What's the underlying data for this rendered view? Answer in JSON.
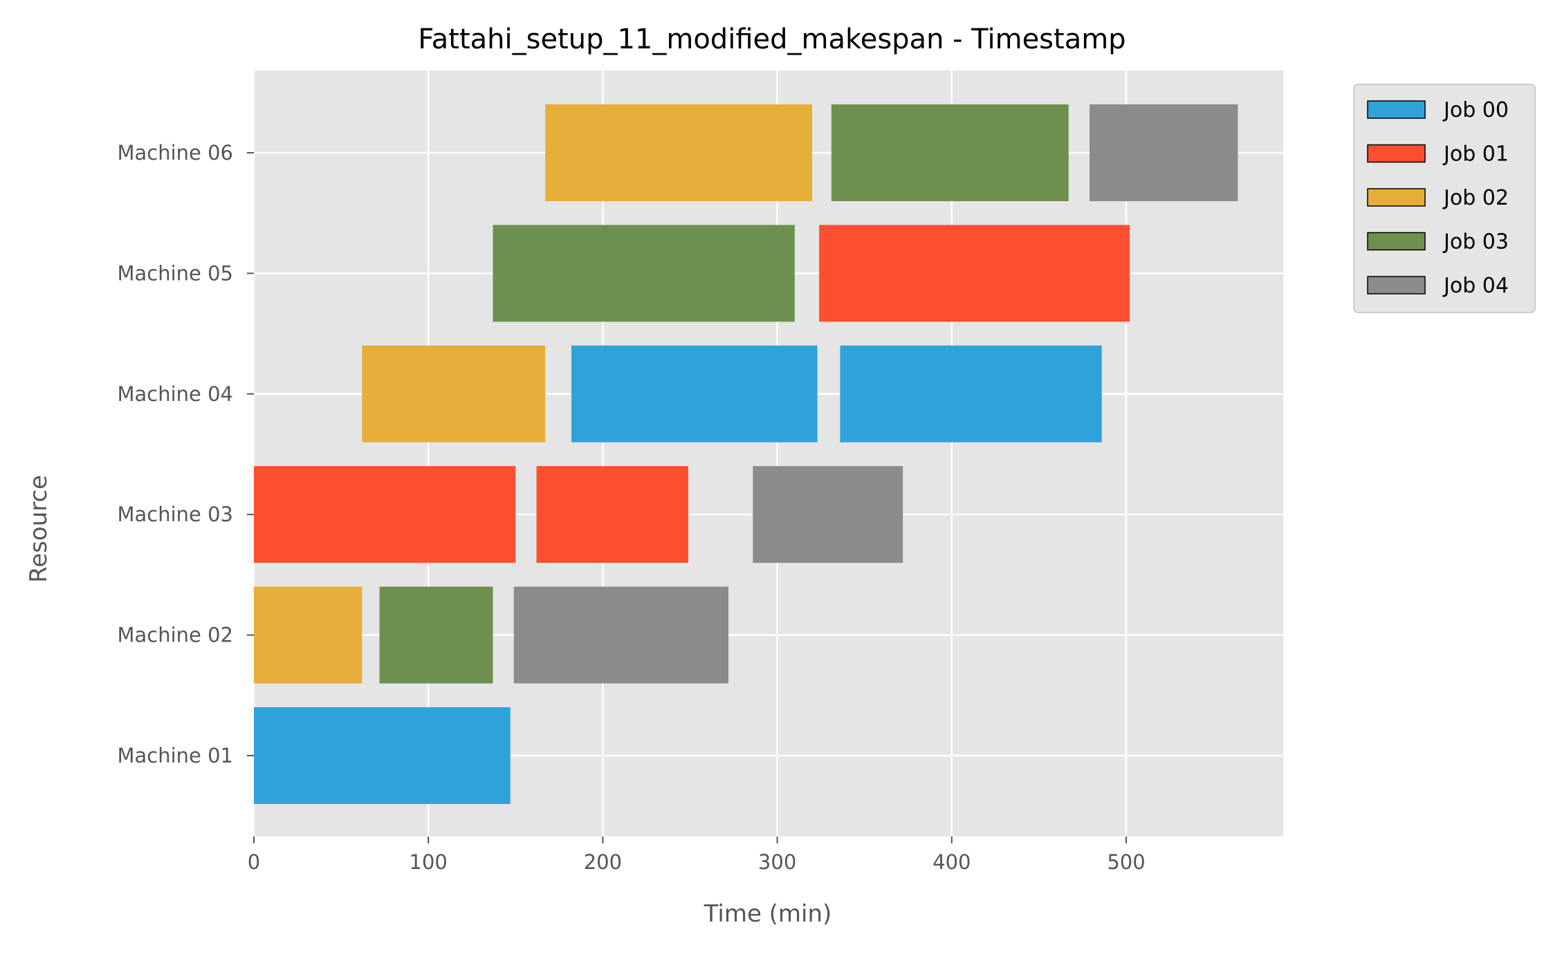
{
  "chart_data": {
    "type": "gantt",
    "title": "Fattahi_setup_11_modified_makespan - Timestamp",
    "xlabel": "Time (min)",
    "ylabel": "Resource",
    "xlim": [
      0,
      590
    ],
    "xticks": [
      0,
      100,
      200,
      300,
      400,
      500
    ],
    "grid": true,
    "legend_position": "outside-right-top",
    "background": "#E5E5E5",
    "resources": [
      "Machine 01",
      "Machine 02",
      "Machine 03",
      "Machine 04",
      "Machine 05",
      "Machine 06"
    ],
    "jobs": [
      {
        "name": "Job 00",
        "color": "#30A2DA"
      },
      {
        "name": "Job 01",
        "color": "#FC4F30"
      },
      {
        "name": "Job 02",
        "color": "#E5AE38"
      },
      {
        "name": "Job 03",
        "color": "#6D904F"
      },
      {
        "name": "Job 04",
        "color": "#8B8B8B"
      }
    ],
    "tasks": [
      {
        "resource": "Machine 01",
        "job": "Job 00",
        "start": 0,
        "end": 147
      },
      {
        "resource": "Machine 02",
        "job": "Job 02",
        "start": 0,
        "end": 62
      },
      {
        "resource": "Machine 02",
        "job": "Job 03",
        "start": 72,
        "end": 137
      },
      {
        "resource": "Machine 02",
        "job": "Job 04",
        "start": 149,
        "end": 272
      },
      {
        "resource": "Machine 03",
        "job": "Job 01",
        "start": 0,
        "end": 150
      },
      {
        "resource": "Machine 03",
        "job": "Job 01",
        "start": 162,
        "end": 249
      },
      {
        "resource": "Machine 03",
        "job": "Job 04",
        "start": 286,
        "end": 372
      },
      {
        "resource": "Machine 04",
        "job": "Job 02",
        "start": 62,
        "end": 167
      },
      {
        "resource": "Machine 04",
        "job": "Job 00",
        "start": 182,
        "end": 323
      },
      {
        "resource": "Machine 04",
        "job": "Job 00",
        "start": 336,
        "end": 486
      },
      {
        "resource": "Machine 05",
        "job": "Job 03",
        "start": 137,
        "end": 310
      },
      {
        "resource": "Machine 05",
        "job": "Job 01",
        "start": 324,
        "end": 502
      },
      {
        "resource": "Machine 06",
        "job": "Job 02",
        "start": 167,
        "end": 320
      },
      {
        "resource": "Machine 06",
        "job": "Job 03",
        "start": 331,
        "end": 467
      },
      {
        "resource": "Machine 06",
        "job": "Job 04",
        "start": 479,
        "end": 564
      }
    ]
  }
}
